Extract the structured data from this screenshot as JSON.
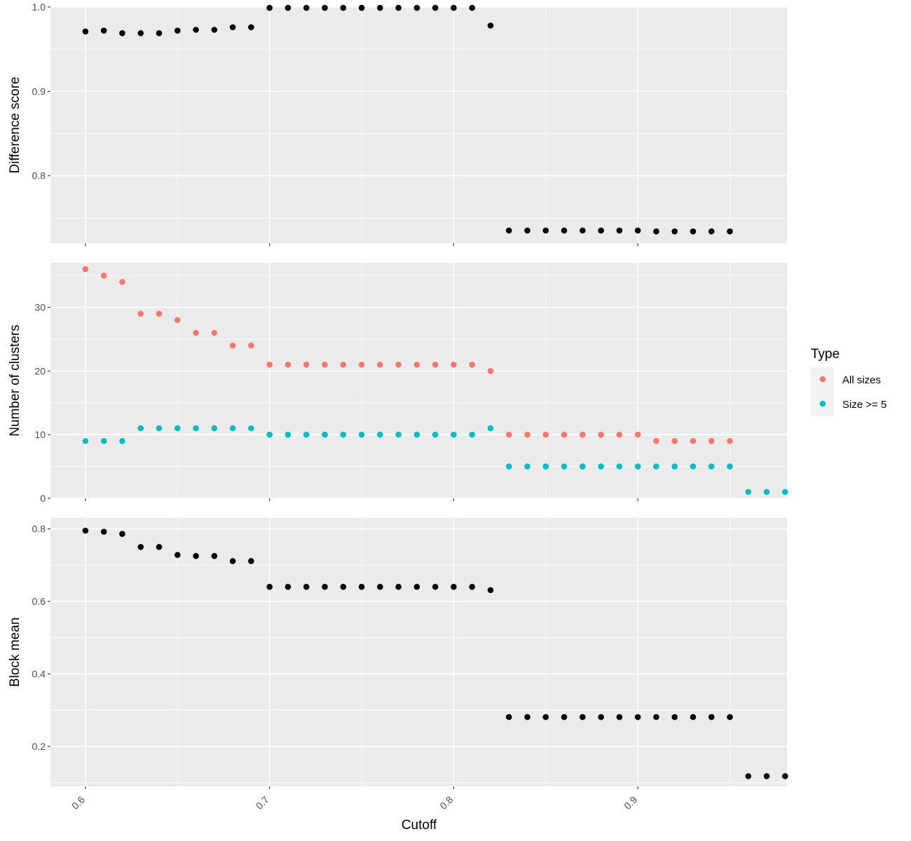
{
  "chart_data": {
    "type": "scatter",
    "xlabel": "Cutoff",
    "x_ticks": [
      0.6,
      0.7,
      0.8,
      0.9
    ],
    "x_tick_labels": [
      "0.6",
      "0.7",
      "0.8",
      "0.9"
    ],
    "xlim": [
      0.581,
      0.981
    ],
    "grid": true,
    "legend_position": "right",
    "legend": {
      "title": "Type",
      "entries": [
        {
          "label": "All sizes",
          "color": "#F8766D"
        },
        {
          "label": "Size >= 5",
          "color": "#00BFC4"
        }
      ]
    },
    "panels": [
      {
        "ylabel": "Difference score",
        "ylim": [
          0.72,
          1.0
        ],
        "y_ticks": [
          0.8,
          0.9,
          1.0
        ],
        "y_tick_labels": [
          "0.8",
          "0.9",
          "1.0"
        ],
        "series": [
          {
            "color": "#000000",
            "points": [
              [
                0.6,
                0.971
              ],
              [
                0.61,
                0.972
              ],
              [
                0.62,
                0.969
              ],
              [
                0.63,
                0.969
              ],
              [
                0.64,
                0.969
              ],
              [
                0.65,
                0.972
              ],
              [
                0.66,
                0.973
              ],
              [
                0.67,
                0.973
              ],
              [
                0.68,
                0.976
              ],
              [
                0.69,
                0.976
              ],
              [
                0.7,
                0.999
              ],
              [
                0.71,
                0.999
              ],
              [
                0.72,
                0.999
              ],
              [
                0.73,
                0.999
              ],
              [
                0.74,
                0.999
              ],
              [
                0.75,
                0.999
              ],
              [
                0.76,
                0.999
              ],
              [
                0.77,
                0.999
              ],
              [
                0.78,
                0.999
              ],
              [
                0.79,
                0.999
              ],
              [
                0.8,
                0.999
              ],
              [
                0.81,
                0.999
              ],
              [
                0.82,
                0.978
              ],
              [
                0.83,
                0.735
              ],
              [
                0.84,
                0.735
              ],
              [
                0.85,
                0.735
              ],
              [
                0.86,
                0.735
              ],
              [
                0.87,
                0.735
              ],
              [
                0.88,
                0.735
              ],
              [
                0.89,
                0.735
              ],
              [
                0.9,
                0.735
              ],
              [
                0.91,
                0.734
              ],
              [
                0.92,
                0.734
              ],
              [
                0.93,
                0.734
              ],
              [
                0.94,
                0.734
              ],
              [
                0.95,
                0.734
              ]
            ]
          }
        ]
      },
      {
        "ylabel": "Number of clusters",
        "ylim": [
          0,
          37
        ],
        "y_ticks": [
          0,
          10,
          20,
          30
        ],
        "y_tick_labels": [
          "0",
          "10",
          "20",
          "30"
        ],
        "series": [
          {
            "name": "All sizes",
            "color": "#F8766D",
            "points": [
              [
                0.6,
                36
              ],
              [
                0.61,
                35
              ],
              [
                0.62,
                34
              ],
              [
                0.63,
                29
              ],
              [
                0.64,
                29
              ],
              [
                0.65,
                28
              ],
              [
                0.66,
                26
              ],
              [
                0.67,
                26
              ],
              [
                0.68,
                24
              ],
              [
                0.69,
                24
              ],
              [
                0.7,
                21
              ],
              [
                0.71,
                21
              ],
              [
                0.72,
                21
              ],
              [
                0.73,
                21
              ],
              [
                0.74,
                21
              ],
              [
                0.75,
                21
              ],
              [
                0.76,
                21
              ],
              [
                0.77,
                21
              ],
              [
                0.78,
                21
              ],
              [
                0.79,
                21
              ],
              [
                0.8,
                21
              ],
              [
                0.81,
                21
              ],
              [
                0.82,
                20
              ],
              [
                0.83,
                10
              ],
              [
                0.84,
                10
              ],
              [
                0.85,
                10
              ],
              [
                0.86,
                10
              ],
              [
                0.87,
                10
              ],
              [
                0.88,
                10
              ],
              [
                0.89,
                10
              ],
              [
                0.9,
                10
              ],
              [
                0.91,
                9
              ],
              [
                0.92,
                9
              ],
              [
                0.93,
                9
              ],
              [
                0.94,
                9
              ],
              [
                0.95,
                9
              ]
            ]
          },
          {
            "name": "Size >= 5",
            "color": "#00BFC4",
            "points": [
              [
                0.6,
                9
              ],
              [
                0.61,
                9
              ],
              [
                0.62,
                9
              ],
              [
                0.63,
                11
              ],
              [
                0.64,
                11
              ],
              [
                0.65,
                11
              ],
              [
                0.66,
                11
              ],
              [
                0.67,
                11
              ],
              [
                0.68,
                11
              ],
              [
                0.69,
                11
              ],
              [
                0.7,
                10
              ],
              [
                0.71,
                10
              ],
              [
                0.72,
                10
              ],
              [
                0.73,
                10
              ],
              [
                0.74,
                10
              ],
              [
                0.75,
                10
              ],
              [
                0.76,
                10
              ],
              [
                0.77,
                10
              ],
              [
                0.78,
                10
              ],
              [
                0.79,
                10
              ],
              [
                0.8,
                10
              ],
              [
                0.81,
                10
              ],
              [
                0.82,
                11
              ],
              [
                0.83,
                5
              ],
              [
                0.84,
                5
              ],
              [
                0.85,
                5
              ],
              [
                0.86,
                5
              ],
              [
                0.87,
                5
              ],
              [
                0.88,
                5
              ],
              [
                0.89,
                5
              ],
              [
                0.9,
                5
              ],
              [
                0.91,
                5
              ],
              [
                0.92,
                5
              ],
              [
                0.93,
                5
              ],
              [
                0.94,
                5
              ],
              [
                0.95,
                5
              ],
              [
                0.96,
                1
              ],
              [
                0.97,
                1
              ],
              [
                0.98,
                1
              ]
            ]
          }
        ]
      },
      {
        "ylabel": "Block mean",
        "ylim": [
          0.09,
          0.83
        ],
        "y_ticks": [
          0.2,
          0.4,
          0.6,
          0.8
        ],
        "y_tick_labels": [
          "0.2",
          "0.4",
          "0.6",
          "0.8"
        ],
        "series": [
          {
            "color": "#000000",
            "points": [
              [
                0.6,
                0.795
              ],
              [
                0.61,
                0.792
              ],
              [
                0.62,
                0.786
              ],
              [
                0.63,
                0.75
              ],
              [
                0.64,
                0.75
              ],
              [
                0.65,
                0.728
              ],
              [
                0.66,
                0.725
              ],
              [
                0.67,
                0.725
              ],
              [
                0.68,
                0.711
              ],
              [
                0.69,
                0.711
              ],
              [
                0.7,
                0.64
              ],
              [
                0.71,
                0.64
              ],
              [
                0.72,
                0.64
              ],
              [
                0.73,
                0.64
              ],
              [
                0.74,
                0.64
              ],
              [
                0.75,
                0.64
              ],
              [
                0.76,
                0.64
              ],
              [
                0.77,
                0.64
              ],
              [
                0.78,
                0.64
              ],
              [
                0.79,
                0.64
              ],
              [
                0.8,
                0.64
              ],
              [
                0.81,
                0.64
              ],
              [
                0.82,
                0.631
              ],
              [
                0.83,
                0.281
              ],
              [
                0.84,
                0.281
              ],
              [
                0.85,
                0.281
              ],
              [
                0.86,
                0.281
              ],
              [
                0.87,
                0.281
              ],
              [
                0.88,
                0.281
              ],
              [
                0.89,
                0.281
              ],
              [
                0.9,
                0.281
              ],
              [
                0.91,
                0.281
              ],
              [
                0.92,
                0.281
              ],
              [
                0.93,
                0.281
              ],
              [
                0.94,
                0.281
              ],
              [
                0.95,
                0.281
              ],
              [
                0.96,
                0.118
              ],
              [
                0.97,
                0.118
              ],
              [
                0.98,
                0.118
              ]
            ]
          }
        ]
      }
    ]
  }
}
